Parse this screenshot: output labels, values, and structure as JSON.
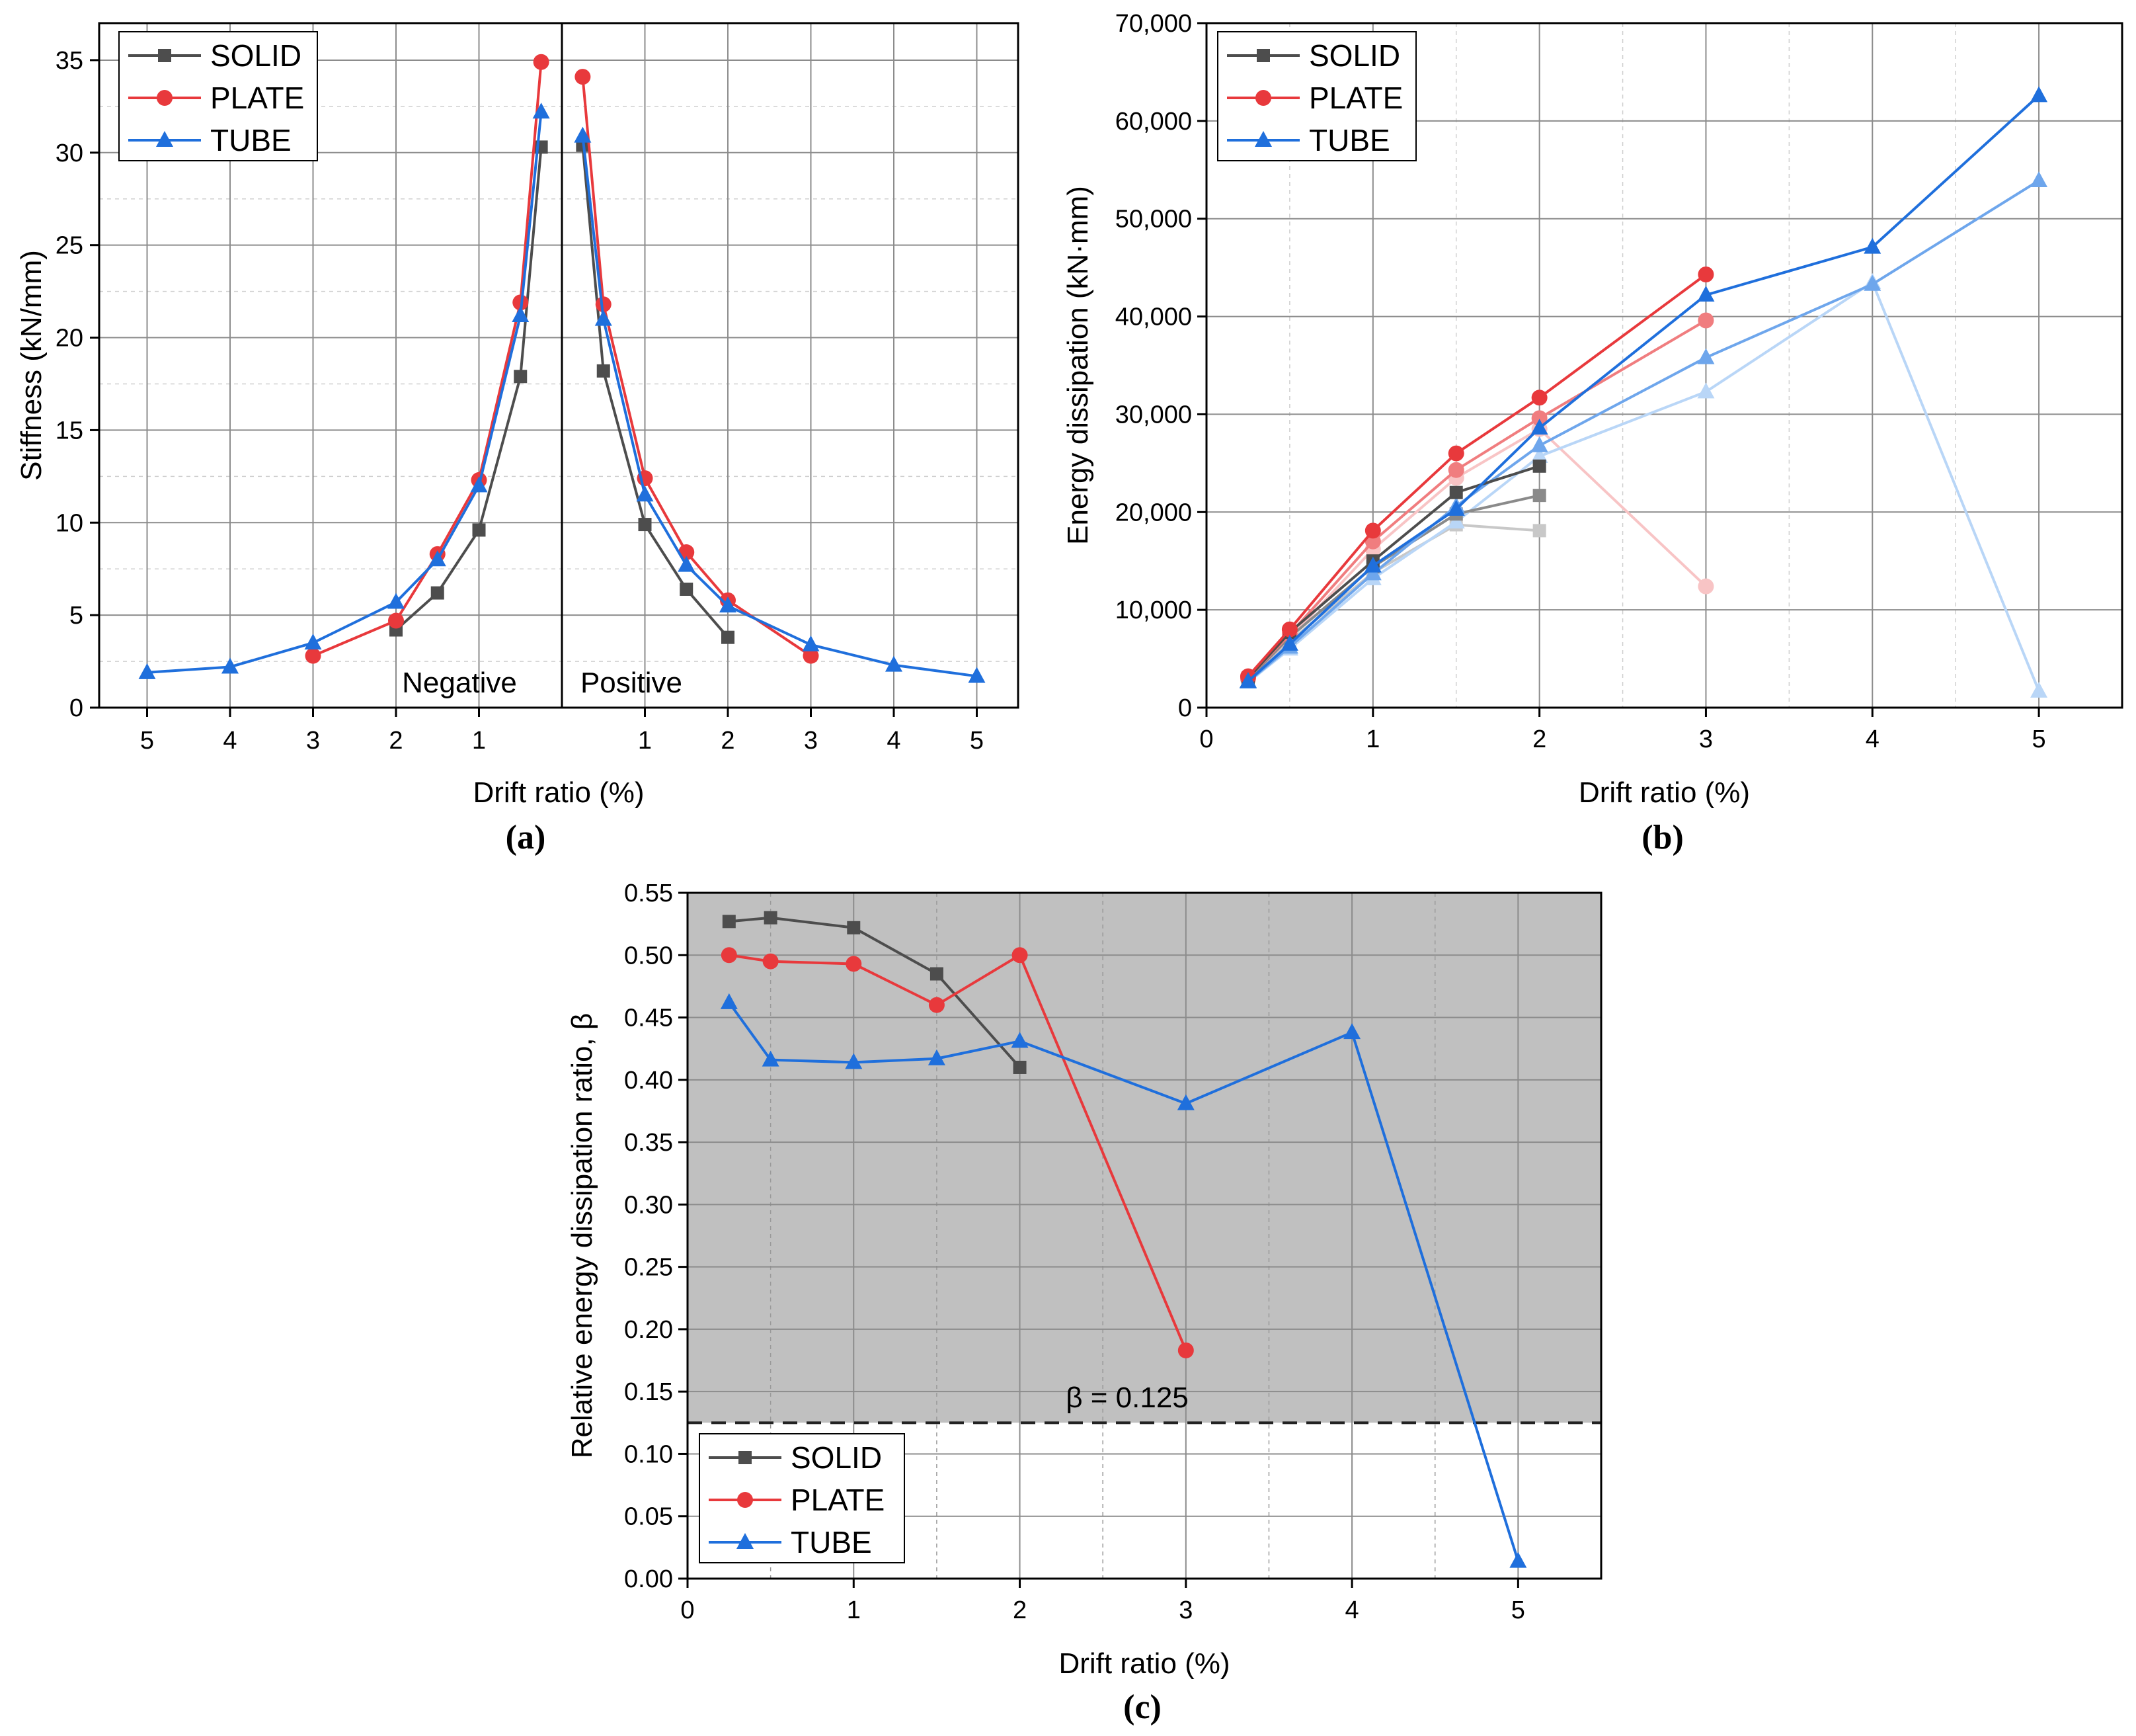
{
  "colors": {
    "solid": "#4d4d4d",
    "plate": "#e8393c",
    "tube": "#1f6fdc",
    "shade": "#c0c0c0"
  },
  "panel_labels": [
    "(a)",
    "(b)",
    "(c)"
  ],
  "chart_data": [
    {
      "id": "a",
      "type": "line",
      "panel_label": "(a)",
      "xlabel": "Drift ratio (%)",
      "ylabel": "Stiffness (kN/mm)",
      "ylim": [
        0,
        37
      ],
      "yticks": [
        0,
        5,
        10,
        15,
        20,
        25,
        30,
        35
      ],
      "xticks": [
        -5,
        -4,
        -3,
        -2,
        -1,
        1,
        2,
        3,
        4,
        5
      ],
      "xtick_labels": [
        "5",
        "4",
        "3",
        "2",
        "1",
        "1",
        "2",
        "3",
        "4",
        "5"
      ],
      "side_labels": {
        "negative": "Negative",
        "positive": "Positive"
      },
      "legend": [
        "SOLID",
        "PLATE",
        "TUBE"
      ],
      "series": [
        {
          "name": "SOLID",
          "marker": "square",
          "segments": [
            {
              "x": [
                -2,
                -1.5,
                -1,
                -0.5,
                -0.25
              ],
              "y": [
                4.2,
                6.2,
                9.6,
                17.9,
                30.3
              ]
            },
            {
              "x": [
                0.25,
                0.5,
                1,
                1.5,
                2
              ],
              "y": [
                30.4,
                18.2,
                9.9,
                6.4,
                3.8
              ]
            }
          ]
        },
        {
          "name": "PLATE",
          "marker": "circle",
          "segments": [
            {
              "x": [
                -3,
                -2,
                -1.5,
                -1,
                -0.5,
                -0.25
              ],
              "y": [
                2.8,
                4.7,
                8.3,
                12.3,
                21.9,
                34.9
              ]
            },
            {
              "x": [
                0.25,
                0.5,
                1,
                1.5,
                2,
                3
              ],
              "y": [
                34.1,
                21.8,
                12.4,
                8.4,
                5.8,
                2.8
              ]
            }
          ]
        },
        {
          "name": "TUBE",
          "marker": "triangle",
          "segments": [
            {
              "x": [
                -5,
                -4,
                -3,
                -2,
                -1.5,
                -1,
                -0.5,
                -0.25
              ],
              "y": [
                1.9,
                2.2,
                3.5,
                5.7,
                8.0,
                12.0,
                21.2,
                32.2
              ]
            },
            {
              "x": [
                0.25,
                0.5,
                1,
                1.5,
                2,
                3,
                4,
                5
              ],
              "y": [
                30.9,
                21.0,
                11.5,
                7.7,
                5.5,
                3.4,
                2.3,
                1.7
              ]
            }
          ]
        }
      ]
    },
    {
      "id": "b",
      "type": "line",
      "panel_label": "(b)",
      "xlabel": "Drift ratio (%)",
      "ylabel": "Energy dissipation (kN·mm)",
      "xlim": [
        0,
        5.5
      ],
      "ylim": [
        0,
        70000
      ],
      "xticks": [
        0,
        1,
        2,
        3,
        4,
        5
      ],
      "yticks": [
        0,
        10000,
        20000,
        30000,
        40000,
        50000,
        60000,
        70000
      ],
      "ytick_labels": [
        "0",
        "10,000",
        "20,000",
        "30,000",
        "40,000",
        "50,000",
        "60,000",
        "70,000"
      ],
      "legend": [
        "SOLID",
        "PLATE",
        "TUBE"
      ],
      "series": [
        {
          "name": "SOLID cycle 1",
          "group": "SOLID",
          "marker": "square",
          "color": "#4d4d4d",
          "x": [
            0.25,
            0.5,
            1,
            1.5,
            2
          ],
          "y": [
            3000,
            7700,
            15000,
            22000,
            24700
          ]
        },
        {
          "name": "SOLID cycle 2",
          "group": "SOLID",
          "marker": "square",
          "color": "#8a8a8a",
          "x": [
            0.25,
            0.5,
            1,
            1.5,
            2
          ],
          "y": [
            2900,
            7200,
            14400,
            19800,
            21700
          ]
        },
        {
          "name": "SOLID cycle 3",
          "group": "SOLID",
          "marker": "square",
          "color": "#c8c8c8",
          "x": [
            0.25,
            0.5,
            1,
            1.5,
            2
          ],
          "y": [
            2800,
            6800,
            13800,
            18700,
            18100
          ]
        },
        {
          "name": "PLATE cycle 1",
          "group": "PLATE",
          "marker": "circle",
          "color": "#e8393c",
          "x": [
            0.25,
            0.5,
            1,
            1.5,
            2,
            3
          ],
          "y": [
            3200,
            8000,
            18100,
            26000,
            31700,
            44300
          ]
        },
        {
          "name": "PLATE cycle 2",
          "group": "PLATE",
          "marker": "circle",
          "color": "#f07d7f",
          "x": [
            0.25,
            0.5,
            1,
            1.5,
            2,
            3
          ],
          "y": [
            3000,
            7500,
            17000,
            24300,
            29600,
            39600
          ]
        },
        {
          "name": "PLATE cycle 3",
          "group": "PLATE",
          "marker": "circle",
          "color": "#f8c4c5",
          "x": [
            0.25,
            0.5,
            1,
            1.5,
            2,
            3
          ],
          "y": [
            2900,
            7100,
            16200,
            23500,
            28500,
            12400
          ]
        },
        {
          "name": "TUBE cycle 1",
          "group": "TUBE",
          "marker": "triangle",
          "color": "#1f6fdc",
          "x": [
            0.25,
            0.5,
            1,
            1.5,
            2,
            3,
            4,
            5
          ],
          "y": [
            2700,
            6500,
            14500,
            20300,
            28600,
            42200,
            47100,
            62600
          ]
        },
        {
          "name": "TUBE cycle 2",
          "group": "TUBE",
          "marker": "triangle",
          "color": "#6ea6ec",
          "x": [
            0.25,
            0.5,
            1,
            1.5,
            2,
            3,
            4,
            5
          ],
          "y": [
            2650,
            6200,
            13700,
            20600,
            26800,
            35800,
            43300,
            53900
          ]
        },
        {
          "name": "TUBE cycle 3",
          "group": "TUBE",
          "marker": "triangle",
          "color": "#b9d6f7",
          "x": [
            0.25,
            0.5,
            1,
            1.5,
            2,
            3,
            4,
            5
          ],
          "y": [
            2600,
            6000,
            13200,
            19000,
            25700,
            32300,
            43500,
            1700
          ]
        }
      ]
    },
    {
      "id": "c",
      "type": "line",
      "panel_label": "(c)",
      "xlabel": "Drift ratio (%)",
      "ylabel": "Relative energy dissipation ratio, β",
      "xlim": [
        0,
        5.5
      ],
      "ylim": [
        0,
        0.55
      ],
      "xticks": [
        0,
        1,
        2,
        3,
        4,
        5
      ],
      "yticks": [
        0,
        0.05,
        0.1,
        0.15,
        0.2,
        0.25,
        0.3,
        0.35,
        0.4,
        0.45,
        0.5,
        0.55
      ],
      "ytick_labels": [
        "0.00",
        "0.05",
        "0.10",
        "0.15",
        "0.20",
        "0.25",
        "0.30",
        "0.35",
        "0.40",
        "0.45",
        "0.50",
        "0.55"
      ],
      "threshold": {
        "value": 0.125,
        "label": "β = 0.125"
      },
      "legend": [
        "SOLID",
        "PLATE",
        "TUBE"
      ],
      "series": [
        {
          "name": "SOLID",
          "marker": "square",
          "x": [
            0.25,
            0.5,
            1,
            1.5,
            2
          ],
          "y": [
            0.527,
            0.53,
            0.522,
            0.485,
            0.41
          ]
        },
        {
          "name": "PLATE",
          "marker": "circle",
          "x": [
            0.25,
            0.5,
            1,
            1.5,
            2,
            3
          ],
          "y": [
            0.5,
            0.495,
            0.493,
            0.46,
            0.5,
            0.183
          ]
        },
        {
          "name": "TUBE",
          "marker": "triangle",
          "x": [
            0.25,
            0.5,
            1,
            1.5,
            2,
            3,
            4,
            5
          ],
          "y": [
            0.462,
            0.416,
            0.414,
            0.417,
            0.431,
            0.381,
            0.438,
            0.014
          ]
        }
      ]
    }
  ]
}
